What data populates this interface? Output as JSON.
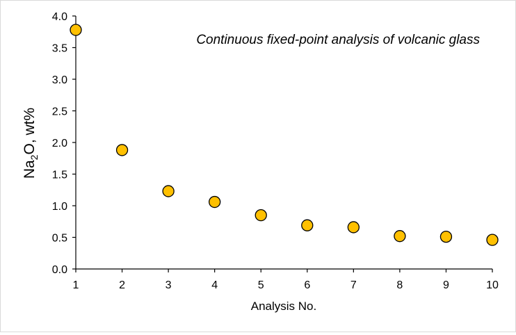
{
  "chart_data": {
    "type": "scatter",
    "annotation": "Continuous fixed-point analysis of volcanic glass",
    "xlabel": "Analysis No.",
    "ylabel": {
      "main": "Na",
      "sub": "2",
      "rest": "O, wt%"
    },
    "xlim": [
      1,
      10
    ],
    "ylim": [
      0.0,
      4.0
    ],
    "xticks": [
      "1",
      "2",
      "3",
      "4",
      "5",
      "6",
      "7",
      "8",
      "9",
      "10"
    ],
    "yticks": [
      "0.0",
      "0.5",
      "1.0",
      "1.5",
      "2.0",
      "2.5",
      "3.0",
      "3.5",
      "4.0"
    ],
    "x": [
      1,
      2,
      3,
      4,
      5,
      6,
      7,
      8,
      9,
      10
    ],
    "y": [
      3.78,
      1.88,
      1.23,
      1.06,
      0.85,
      0.69,
      0.66,
      0.52,
      0.51,
      0.46
    ],
    "grid": false,
    "legend": "none",
    "colors": {
      "marker_fill": "#FFC000",
      "marker_stroke": "#000000",
      "axis": "#000000"
    }
  }
}
